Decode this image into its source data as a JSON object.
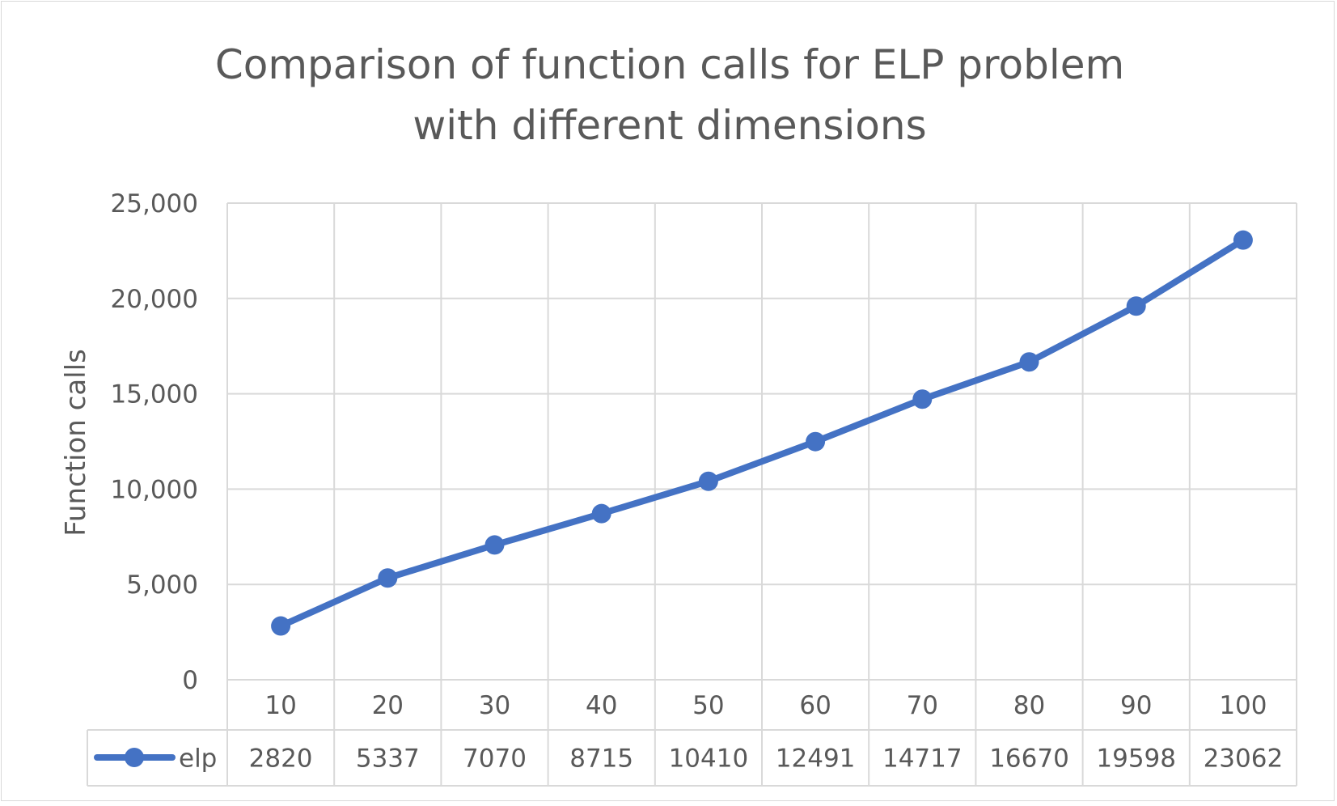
{
  "chart_data": {
    "type": "line",
    "title_lines": [
      "Comparison of function calls for ELP problem",
      "with different dimensions"
    ],
    "xlabel": "",
    "ylabel": "Function calls",
    "categories": [
      "10",
      "20",
      "30",
      "40",
      "50",
      "60",
      "70",
      "80",
      "90",
      "100"
    ],
    "series": [
      {
        "name": "elp",
        "values": [
          2820,
          5337,
          7070,
          8715,
          10410,
          12491,
          14717,
          16670,
          19598,
          23062
        ],
        "color": "#4472c4"
      }
    ],
    "ylim": [
      0,
      25000
    ],
    "yticks": [
      "0",
      "5,000",
      "10,000",
      "15,000",
      "20,000",
      "25,000"
    ],
    "grid": true,
    "data_table": true
  }
}
